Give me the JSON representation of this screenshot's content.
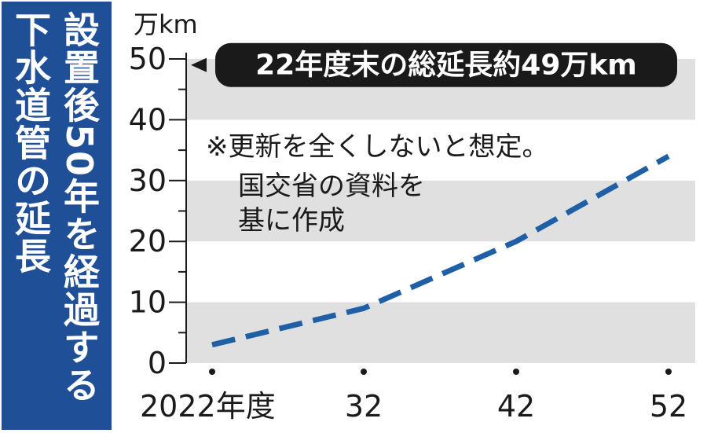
{
  "title": {
    "line1": "設置後50年を経過する",
    "line2": "下水道管の延長"
  },
  "chart_data": {
    "type": "line",
    "unit": "万km",
    "x": [
      "2022年度",
      "32",
      "42",
      "52"
    ],
    "series": [
      {
        "values": [
          3,
          9,
          20,
          34
        ]
      }
    ],
    "ylim": [
      0,
      50
    ],
    "yticks": [
      "0",
      "10",
      "20",
      "30",
      "40",
      "50"
    ],
    "grid": "alternating horizontal gray bands",
    "line_style": "dashed",
    "line_color": "#1f5fa6",
    "band_color": "#e0e0e0",
    "callout": {
      "text": "22年度末の総延長約49万km",
      "value": 49
    },
    "note": [
      "※更新を全くしないと想定。",
      "国交省の資料を",
      "基に作成"
    ]
  }
}
